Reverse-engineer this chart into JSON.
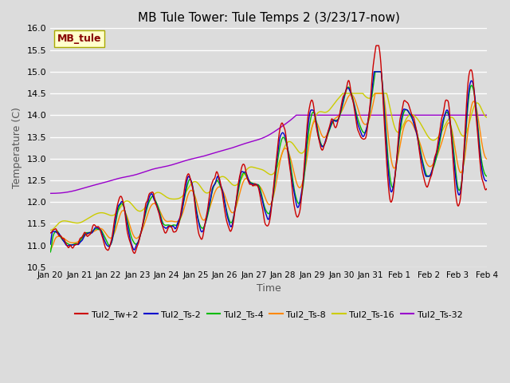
{
  "title": "MB Tule Tower: Tule Temps 2 (3/23/17-now)",
  "xlabel": "Time",
  "ylabel": "Temperature (C)",
  "ylim": [
    10.5,
    16.0
  ],
  "yticks": [
    10.5,
    11.0,
    11.5,
    12.0,
    12.5,
    13.0,
    13.5,
    14.0,
    14.5,
    15.0,
    15.5,
    16.0
  ],
  "bg_color": "#dcdcdc",
  "series_colors": {
    "Tul2_Tw+2": "#cc0000",
    "Tul2_Ts-2": "#0000cc",
    "Tul2_Ts-4": "#00bb00",
    "Tul2_Ts-8": "#ff8800",
    "Tul2_Ts-16": "#cccc00",
    "Tul2_Ts-32": "#9900cc"
  },
  "legend_label": "MB_tule",
  "legend_box_color": "#ffffcc",
  "legend_text_color": "#880000",
  "x_tick_labels": [
    "Jan 20",
    "Jan 21",
    "Jan 22",
    "Jan 23",
    "Jan 24",
    "Jan 25",
    "Jan 26",
    "Jan 27",
    "Jan 28",
    "Jan 29",
    "Jan 30",
    "Jan 31",
    "Feb 1",
    "Feb 2",
    "Feb 3",
    "Feb 4"
  ]
}
